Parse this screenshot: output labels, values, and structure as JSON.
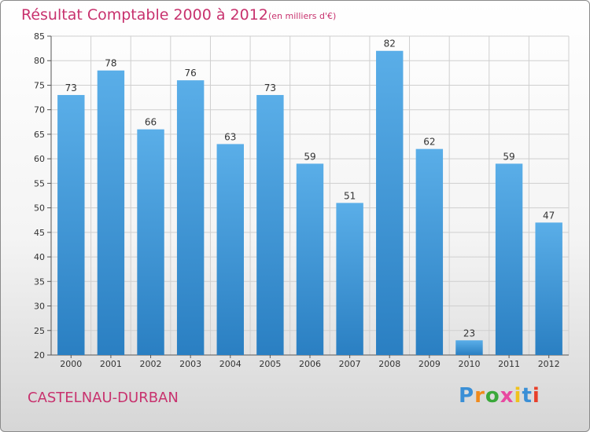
{
  "header": {
    "title": "Résultat Comptable 2000 à 2012",
    "unit": "(en milliers d'€)"
  },
  "footer": {
    "commune": "CASTELNAU-DURBAN",
    "logo": "Proxiti"
  },
  "colors": {
    "title": "#c8326e",
    "bar_top": "#5aaee8",
    "bar_bottom": "#2a7fc2",
    "grid": "#cfcfcf"
  },
  "chart_data": {
    "type": "bar",
    "title": "Résultat Comptable 2000 à 2012",
    "subtitle": "(en milliers d'€)",
    "categories": [
      "2000",
      "2001",
      "2002",
      "2003",
      "2004",
      "2005",
      "2006",
      "2007",
      "2008",
      "2009",
      "2010",
      "2011",
      "2012"
    ],
    "values": [
      73,
      78,
      66,
      76,
      63,
      73,
      59,
      51,
      82,
      62,
      23,
      59,
      47
    ],
    "ylim": [
      20,
      85
    ],
    "yticks": [
      20,
      25,
      30,
      35,
      40,
      45,
      50,
      55,
      60,
      65,
      70,
      75,
      80,
      85
    ],
    "grid": true,
    "xlabel": "",
    "ylabel": ""
  }
}
